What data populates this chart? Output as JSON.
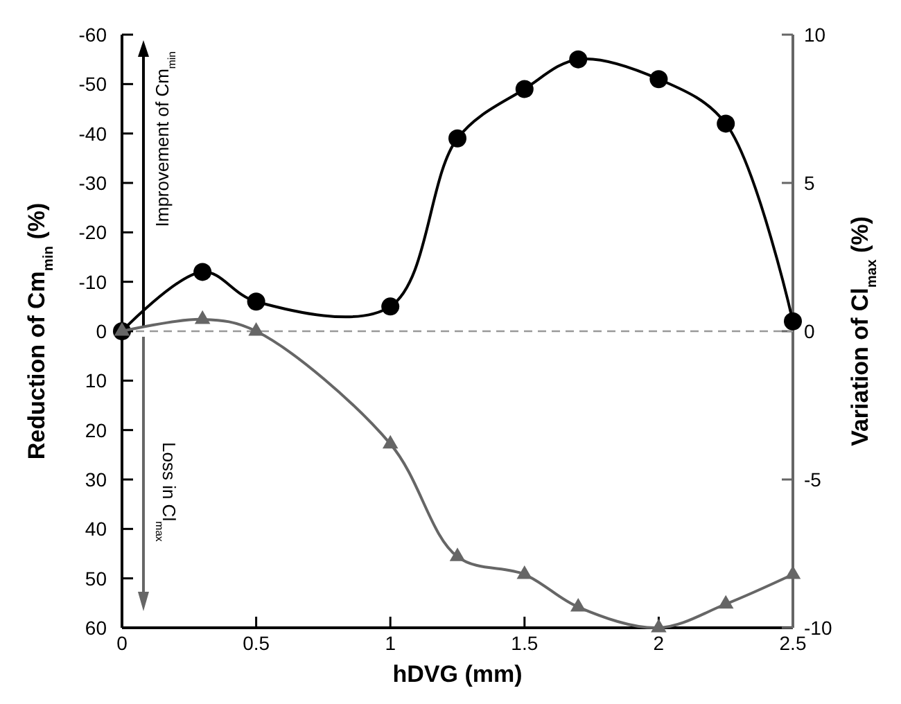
{
  "chart_data": {
    "type": "line",
    "xlabel": "hDVG (mm)",
    "ylabel": "Reduction of  Cm$_{min}$ (%)",
    "y2label": "Variation of Cl$_{max}$ (%)",
    "xlim": [
      0,
      2.5
    ],
    "xticks": [
      0,
      0.5,
      1,
      1.5,
      2,
      2.5
    ],
    "ylim": [
      60,
      -60
    ],
    "yticks": [
      -60,
      -50,
      -40,
      -30,
      -20,
      -10,
      0,
      10,
      20,
      30,
      40,
      50,
      60
    ],
    "y2lim": [
      -10,
      10
    ],
    "y2ticks": [
      -10,
      -5,
      0,
      5,
      10
    ],
    "series": [
      {
        "color": "#000000",
        "marker": "circle",
        "x": [
          0,
          0.3,
          0.5,
          1,
          1.25,
          1.5,
          1.7,
          2,
          2.25,
          2.5
        ],
        "values": [
          0,
          -12,
          -6,
          -5,
          -39,
          -49,
          -55,
          -51,
          -42,
          -2
        ]
      },
      {
        "color": "#666666",
        "marker": "triangle",
        "axis": "y2",
        "x": [
          0,
          0.3,
          0.5,
          1,
          1.25,
          1.5,
          1.7,
          2,
          2.25,
          2.5
        ],
        "values": [
          0,
          0.4,
          0,
          -3.8,
          -7.6,
          -8.2,
          -9.3,
          -10,
          -9.2,
          -8.2
        ]
      }
    ],
    "ref_lines": [
      {
        "axis": "y",
        "value": 0,
        "color": "#999999",
        "line_style": "dashed"
      }
    ],
    "annotations": [
      "Improvement of Cm$_{min}$",
      "Loss in Cl$_{max}$"
    ]
  }
}
